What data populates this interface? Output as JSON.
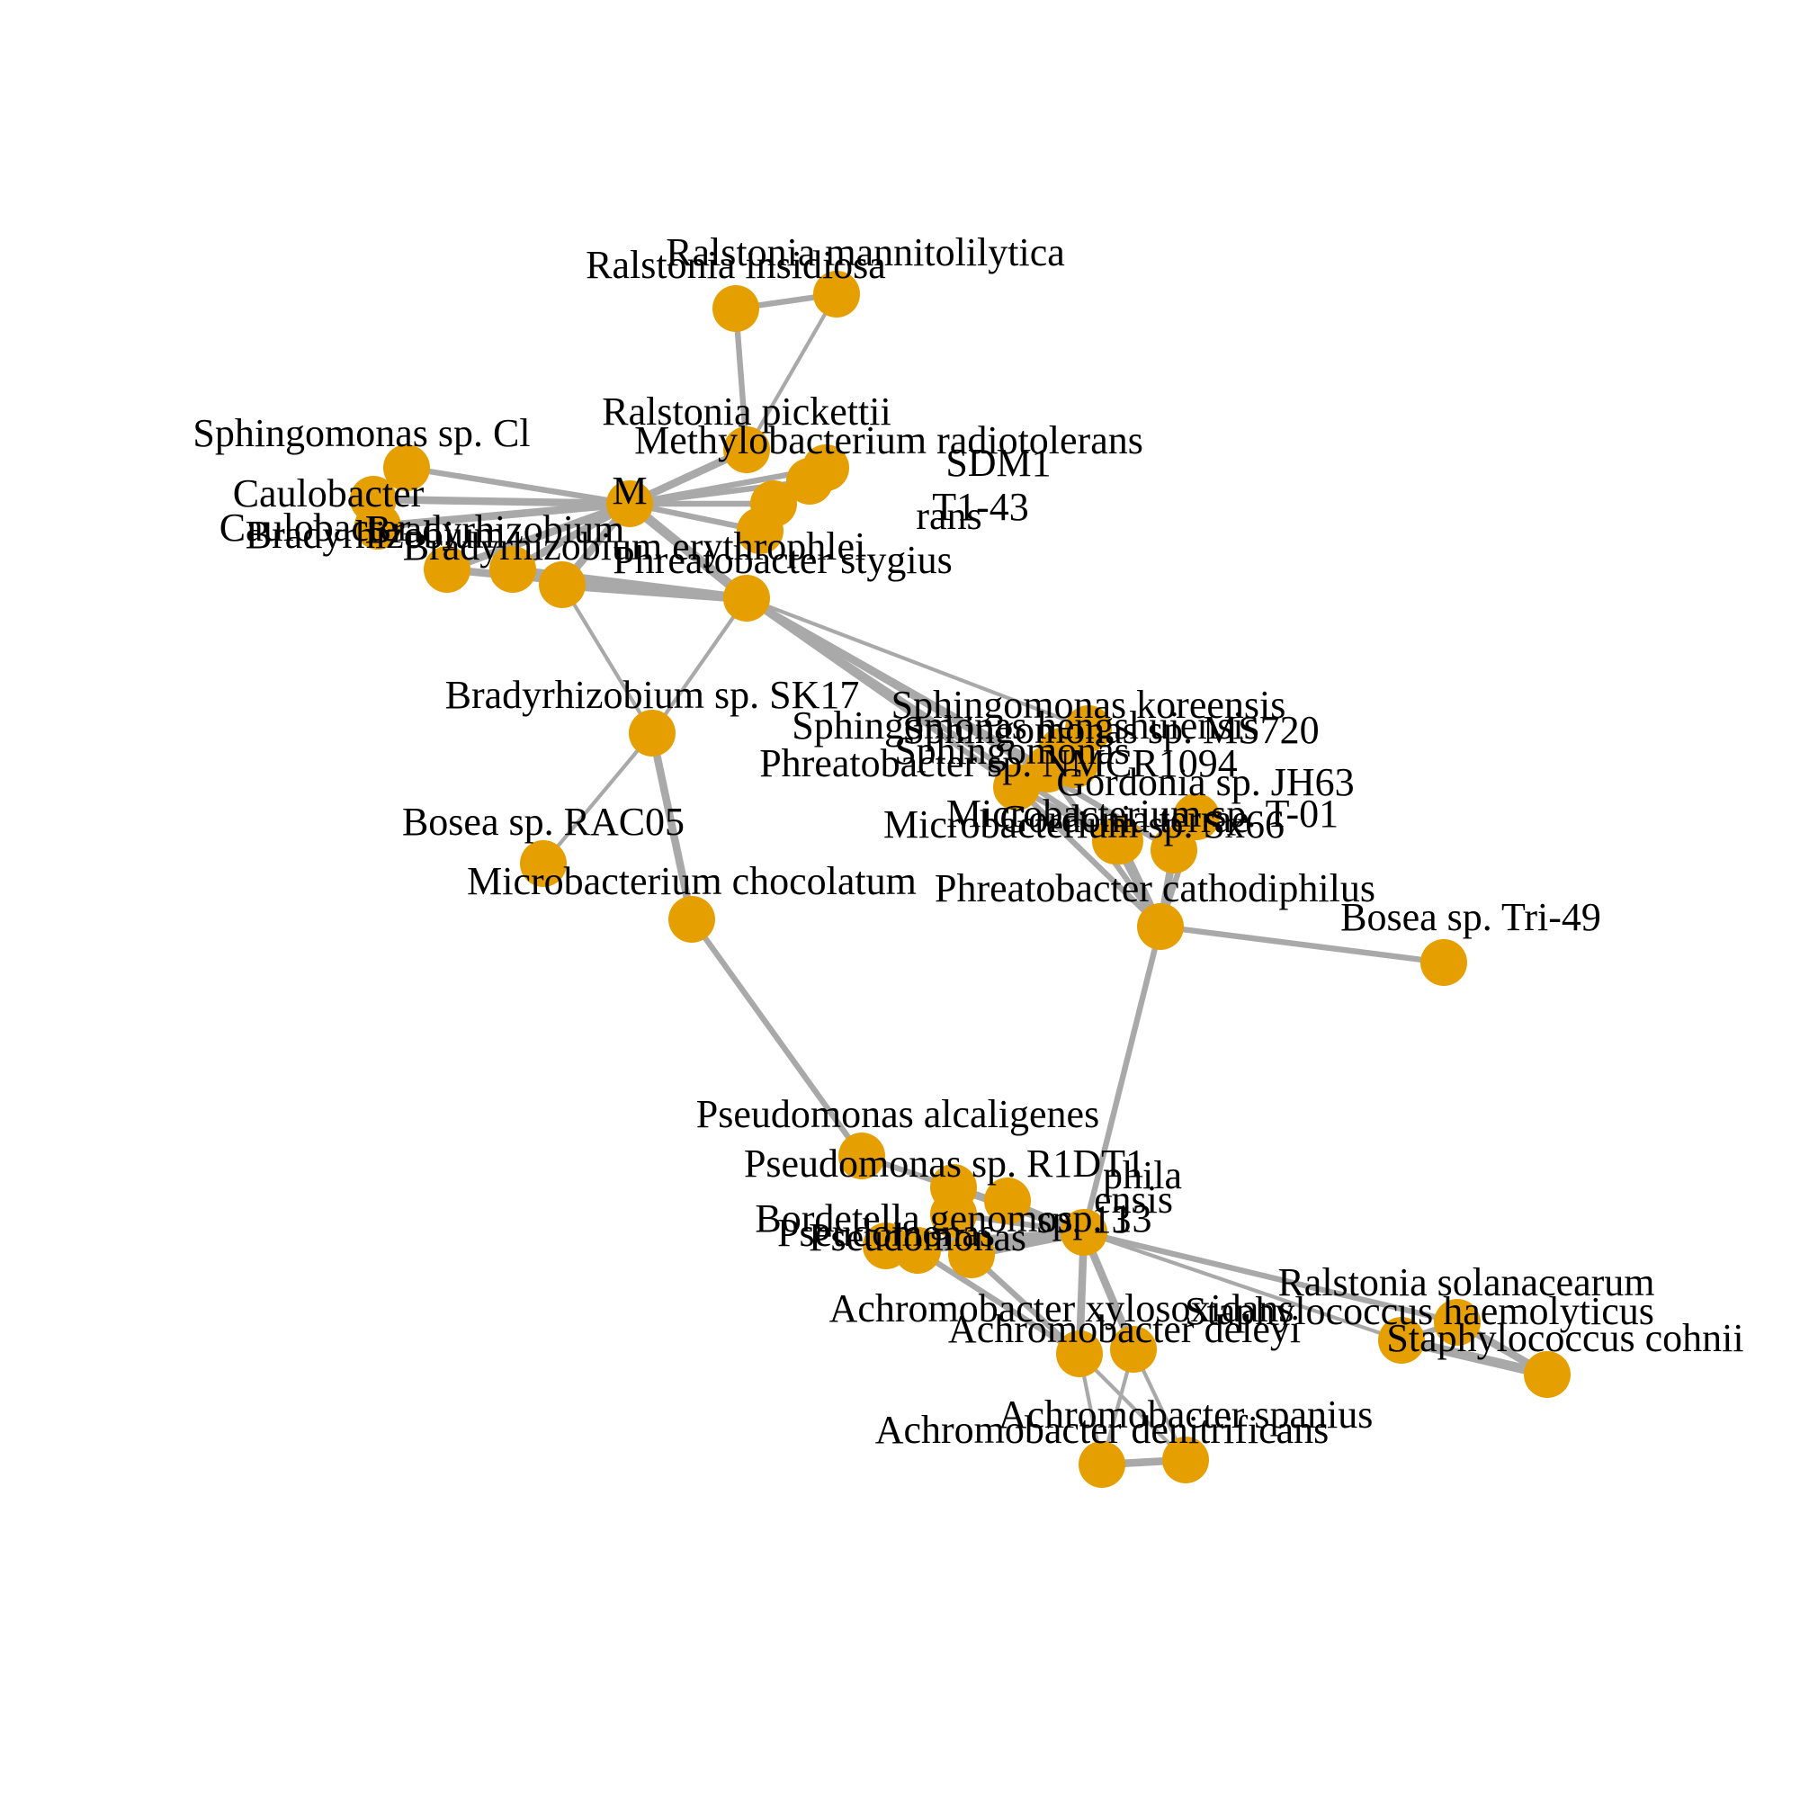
{
  "colors": {
    "node": "#E69F00",
    "edge": "#A9A9A9",
    "label": "#000000"
  },
  "nodes": [
    {
      "id": "ralstonia-insidiosa",
      "label": "Ralstonia insidiosa"
    },
    {
      "id": "ralstonia-mannitolilytica",
      "label": "Ralstonia mannitolilytica"
    },
    {
      "id": "ralstonia-pickettii",
      "label": "Ralstonia pickettii"
    },
    {
      "id": "methylobacterium-radiotolerans",
      "label": "Methylobacterium radiotolerans"
    },
    {
      "id": "sphingomonas-cl",
      "label": "Sphingomonas sp. Cl"
    },
    {
      "id": "caulobacter-a",
      "label": "Caulobacter"
    },
    {
      "id": "caulobacter-b",
      "label": "Caulobacter"
    },
    {
      "id": "bradyrhizobium-a",
      "label": "Bradyrhizobium"
    },
    {
      "id": "bradyrhizobium-b",
      "label": "Bradyrhizobium"
    },
    {
      "id": "bradyrhizobium-erythrophlei",
      "label": "Bradyrhizobium erythrophlei"
    },
    {
      "id": "cluster-sdm1",
      "label": "SDM1"
    },
    {
      "id": "cluster-t1-43",
      "label": "T1-43"
    },
    {
      "id": "cluster-rans",
      "label": "rans"
    },
    {
      "id": "cluster-mid",
      "label": "M"
    },
    {
      "id": "phreatobacter-stygius",
      "label": "Phreatobacter stygius"
    },
    {
      "id": "bradyrhizobium-sk17",
      "label": "Bradyrhizobium sp. SK17"
    },
    {
      "id": "bosea-rac05",
      "label": "Bosea sp. RAC05"
    },
    {
      "id": "microbacterium-chocolatum",
      "label": "Microbacterium chocolatum"
    },
    {
      "id": "sphingomonas-koreensis",
      "label": "Sphingomonas koreensis"
    },
    {
      "id": "sphingomonas-hengshuiensis",
      "label": "Sphingomonas hengshuiensis"
    },
    {
      "id": "sphingomonas-ms720",
      "label": "Sphingomonas sp. MS720"
    },
    {
      "id": "sphingomonas-m",
      "label": "Sphingomonas"
    },
    {
      "id": "phreatobacter-nmcr1094",
      "label": "Phreatobacter sp. NMCR1094"
    },
    {
      "id": "gordonia-jh63",
      "label": "Gordonia sp. JH63"
    },
    {
      "id": "gordonia-terrae",
      "label": "Gordonia terrae"
    },
    {
      "id": "microbacterium-sx66",
      "label": "Microbacterium sp. Sx66"
    },
    {
      "id": "microbacterium-t-01",
      "label": "Microbacterium sp. T-01"
    },
    {
      "id": "phreatobacter-cathodiphilus",
      "label": "Phreatobacter cathodiphilus"
    },
    {
      "id": "bosea-tri-49",
      "label": "Bosea sp. Tri-49"
    },
    {
      "id": "pseudomonas-alcaligenes",
      "label": "Pseudomonas alcaligenes"
    },
    {
      "id": "pseudomonas-r1dt1",
      "label": "Pseudomonas sp. R1DT1"
    },
    {
      "id": "cluster-phila",
      "label": "phila"
    },
    {
      "id": "cluster-ensis",
      "label": "ensis"
    },
    {
      "id": "cluster-sp13",
      "label": "sp. 13"
    },
    {
      "id": "bordetella-genomosp",
      "label": "Bordetella genomosp. 13"
    },
    {
      "id": "pseudomonas-a",
      "label": "Pseudomonas"
    },
    {
      "id": "pseudomonas-b",
      "label": "Pseudomonas"
    },
    {
      "id": "achromobacter-xylosoxidans",
      "label": "Achromobacter xylosoxidans"
    },
    {
      "id": "achromobacter-deleyi",
      "label": "Achromobacter deleyi"
    },
    {
      "id": "achromobacter-spanius",
      "label": "Achromobacter spanius"
    },
    {
      "id": "achromobacter-denitrificans",
      "label": "Achromobacter denitrificans"
    },
    {
      "id": "ralstonia-solanacearum",
      "label": "Ralstonia solanacearum"
    },
    {
      "id": "staphylococcus-haemolyticus",
      "label": "Staphylococcus haemolyticus"
    },
    {
      "id": "staphylococcus-cohnii",
      "label": "Staphylococcus cohnii"
    }
  ],
  "edges": [
    {
      "source": "ralstonia-insidiosa",
      "target": "ralstonia-mannitolilytica",
      "weight": 2
    },
    {
      "source": "ralstonia-insidiosa",
      "target": "ralstonia-pickettii",
      "weight": 2
    },
    {
      "source": "ralstonia-mannitolilytica",
      "target": "ralstonia-pickettii",
      "weight": 1
    },
    {
      "source": "ralstonia-pickettii",
      "target": "cluster-mid",
      "weight": 3
    },
    {
      "source": "sphingomonas-cl",
      "target": "cluster-mid",
      "weight": 2
    },
    {
      "source": "caulobacter-a",
      "target": "cluster-mid",
      "weight": 3
    },
    {
      "source": "caulobacter-b",
      "target": "cluster-mid",
      "weight": 3
    },
    {
      "source": "bradyrhizobium-a",
      "target": "cluster-mid",
      "weight": 3
    },
    {
      "source": "bradyrhizobium-b",
      "target": "cluster-mid",
      "weight": 3
    },
    {
      "source": "bradyrhizobium-erythrophlei",
      "target": "cluster-mid",
      "weight": 3
    },
    {
      "source": "cluster-sdm1",
      "target": "cluster-mid",
      "weight": 2
    },
    {
      "source": "cluster-t1-43",
      "target": "cluster-mid",
      "weight": 2
    },
    {
      "source": "cluster-rans",
      "target": "cluster-mid",
      "weight": 2
    },
    {
      "source": "methylobacterium-radiotolerans",
      "target": "cluster-mid",
      "weight": 2
    },
    {
      "source": "cluster-mid",
      "target": "phreatobacter-stygius",
      "weight": 4
    },
    {
      "source": "bradyrhizobium-a",
      "target": "phreatobacter-stygius",
      "weight": 3
    },
    {
      "source": "bradyrhizobium-b",
      "target": "phreatobacter-stygius",
      "weight": 3
    },
    {
      "source": "bradyrhizobium-erythrophlei",
      "target": "phreatobacter-stygius",
      "weight": 4
    },
    {
      "source": "bradyrhizobium-erythrophlei",
      "target": "bradyrhizobium-sk17",
      "weight": 1
    },
    {
      "source": "phreatobacter-stygius",
      "target": "bradyrhizobium-sk17",
      "weight": 1
    },
    {
      "source": "bradyrhizobium-sk17",
      "target": "bosea-rac05",
      "weight": 1
    },
    {
      "source": "bradyrhizobium-sk17",
      "target": "microbacterium-chocolatum",
      "weight": 3
    },
    {
      "source": "microbacterium-chocolatum",
      "target": "pseudomonas-alcaligenes",
      "weight": 2
    },
    {
      "source": "phreatobacter-stygius",
      "target": "phreatobacter-nmcr1094",
      "weight": 2
    },
    {
      "source": "phreatobacter-stygius",
      "target": "sphingomonas-koreensis",
      "weight": 1
    },
    {
      "source": "phreatobacter-stygius",
      "target": "sphingomonas-m",
      "weight": 2
    },
    {
      "source": "phreatobacter-stygius",
      "target": "gordonia-terrae",
      "weight": 2
    },
    {
      "source": "phreatobacter-stygius",
      "target": "microbacterium-t-01",
      "weight": 2
    },
    {
      "source": "phreatobacter-nmcr1094",
      "target": "gordonia-terrae",
      "weight": 2
    },
    {
      "source": "phreatobacter-nmcr1094",
      "target": "phreatobacter-cathodiphilus",
      "weight": 2
    },
    {
      "source": "sphingomonas-m",
      "target": "phreatobacter-cathodiphilus",
      "weight": 2
    },
    {
      "source": "gordonia-terrae",
      "target": "phreatobacter-cathodiphilus",
      "weight": 3
    },
    {
      "source": "microbacterium-sx66",
      "target": "phreatobacter-cathodiphilus",
      "weight": 3
    },
    {
      "source": "microbacterium-t-01",
      "target": "phreatobacter-cathodiphilus",
      "weight": 3
    },
    {
      "source": "gordonia-jh63",
      "target": "phreatobacter-cathodiphilus",
      "weight": 2
    },
    {
      "source": "phreatobacter-cathodiphilus",
      "target": "bosea-tri-49",
      "weight": 2
    },
    {
      "source": "phreatobacter-cathodiphilus",
      "target": "cluster-sp13",
      "weight": 2
    },
    {
      "source": "pseudomonas-alcaligenes",
      "target": "pseudomonas-r1dt1",
      "weight": 2
    },
    {
      "source": "pseudomonas-a",
      "target": "cluster-sp13",
      "weight": 3
    },
    {
      "source": "pseudomonas-b",
      "target": "cluster-sp13",
      "weight": 3
    },
    {
      "source": "bordetella-genomosp",
      "target": "cluster-sp13",
      "weight": 3
    },
    {
      "source": "pseudomonas-r1dt1",
      "target": "cluster-sp13",
      "weight": 3
    },
    {
      "source": "cluster-phila",
      "target": "cluster-sp13",
      "weight": 2
    },
    {
      "source": "cluster-ensis",
      "target": "cluster-sp13",
      "weight": 2
    },
    {
      "source": "cluster-sp13",
      "target": "achromobacter-xylosoxidans",
      "weight": 3
    },
    {
      "source": "cluster-sp13",
      "target": "achromobacter-deleyi",
      "weight": 3
    },
    {
      "source": "bordetella-genomosp",
      "target": "achromobacter-xylosoxidans",
      "weight": 2
    },
    {
      "source": "pseudomonas-b",
      "target": "achromobacter-xylosoxidans",
      "weight": 2
    },
    {
      "source": "cluster-sp13",
      "target": "ralstonia-solanacearum",
      "weight": 2
    },
    {
      "source": "cluster-sp13",
      "target": "staphylococcus-haemolyticus",
      "weight": 1
    },
    {
      "source": "achromobacter-xylosoxidans",
      "target": "achromobacter-spanius",
      "weight": 1
    },
    {
      "source": "achromobacter-xylosoxidans",
      "target": "achromobacter-denitrificans",
      "weight": 1
    },
    {
      "source": "achromobacter-deleyi",
      "target": "achromobacter-spanius",
      "weight": 1
    },
    {
      "source": "achromobacter-deleyi",
      "target": "achromobacter-denitrificans",
      "weight": 1
    },
    {
      "source": "achromobacter-spanius",
      "target": "achromobacter-denitrificans",
      "weight": 3
    },
    {
      "source": "staphylococcus-haemolyticus",
      "target": "staphylococcus-cohnii",
      "weight": 4
    },
    {
      "source": "ralstonia-solanacearum",
      "target": "staphylococcus-cohnii",
      "weight": 3
    },
    {
      "source": "ralstonia-solanacearum",
      "target": "staphylococcus-haemolyticus",
      "weight": 2
    }
  ]
}
